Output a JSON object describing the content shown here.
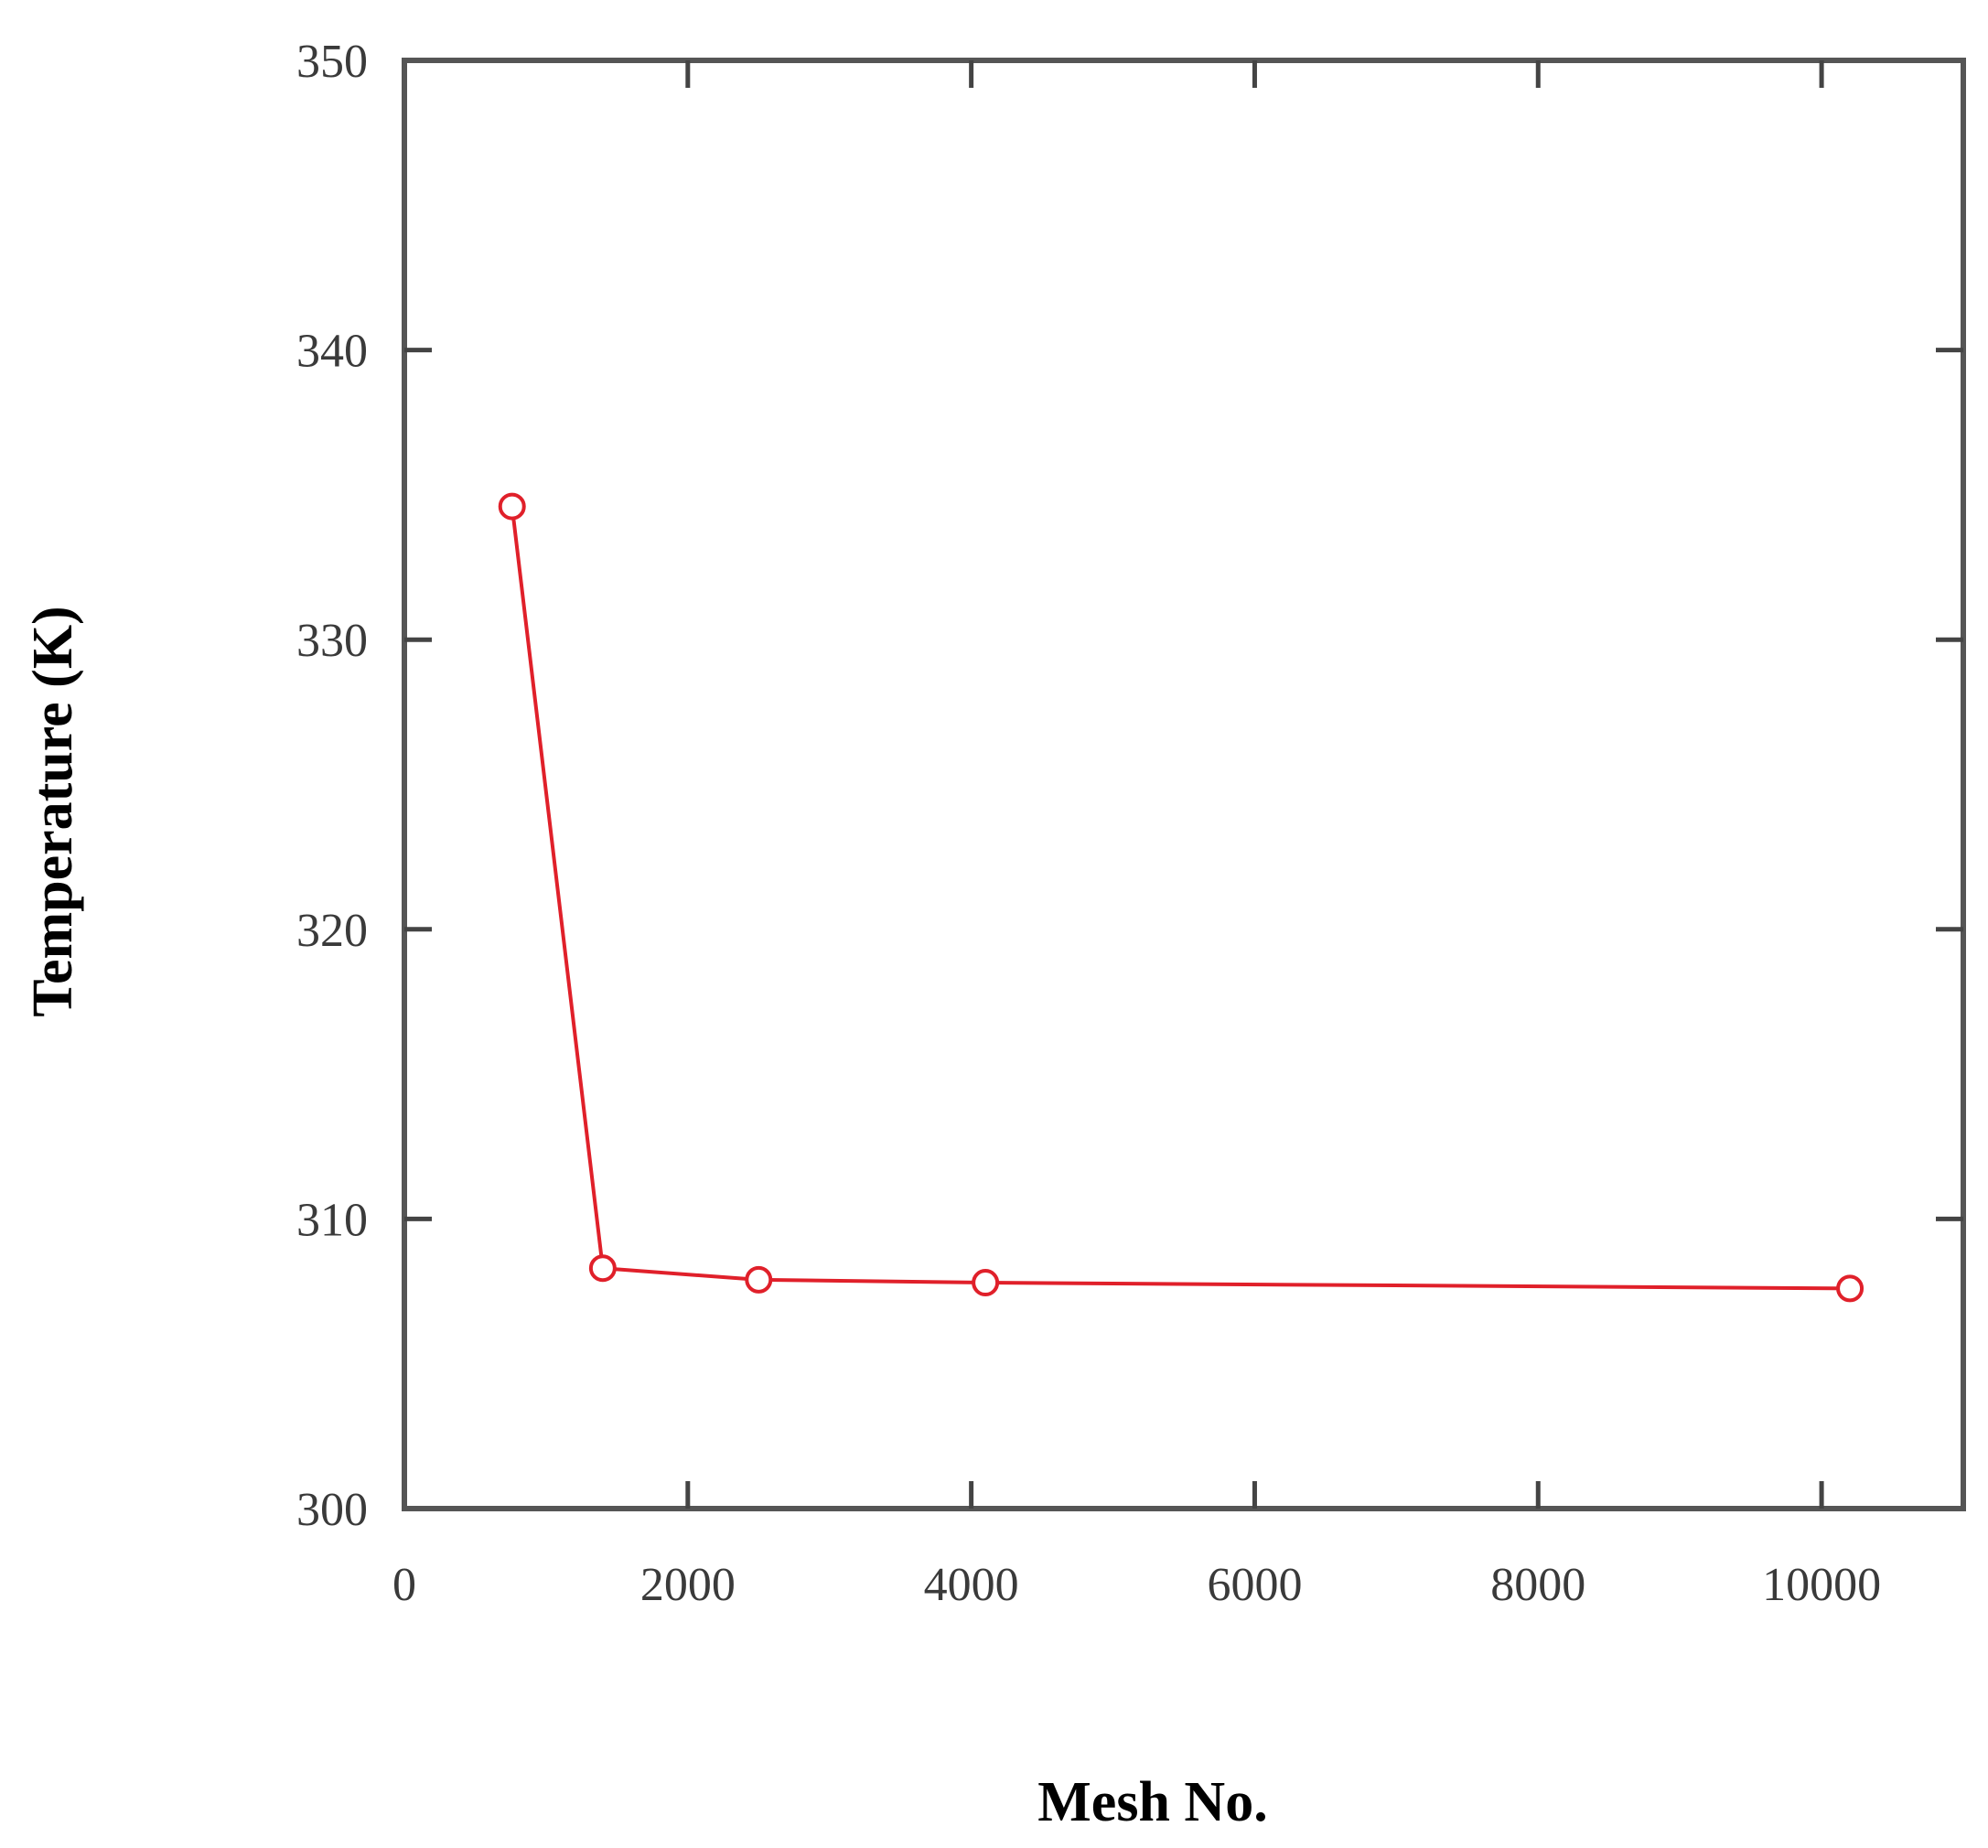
{
  "chart_data": {
    "type": "line",
    "title": "",
    "xlabel": "Mesh No.",
    "ylabel": "Temperature (K)",
    "xlim": [
      0,
      11000
    ],
    "ylim": [
      300,
      350
    ],
    "xticks": [
      0,
      2000,
      4000,
      6000,
      8000,
      10000
    ],
    "yticks": [
      300,
      310,
      320,
      330,
      340,
      350
    ],
    "xtick_labels": [
      "0",
      "2000",
      "4000",
      "6000",
      "8000",
      "10000"
    ],
    "ytick_labels": [
      "300",
      "310",
      "320",
      "330",
      "340",
      "350"
    ],
    "grid": false,
    "legend": "none",
    "series": [
      {
        "x": [
          760,
          1400,
          2500,
          4100,
          10200
        ],
        "y": [
          334.6,
          308.3,
          307.9,
          307.8,
          307.6
        ],
        "color": "#e0202a",
        "marker": "open-circle"
      }
    ]
  }
}
